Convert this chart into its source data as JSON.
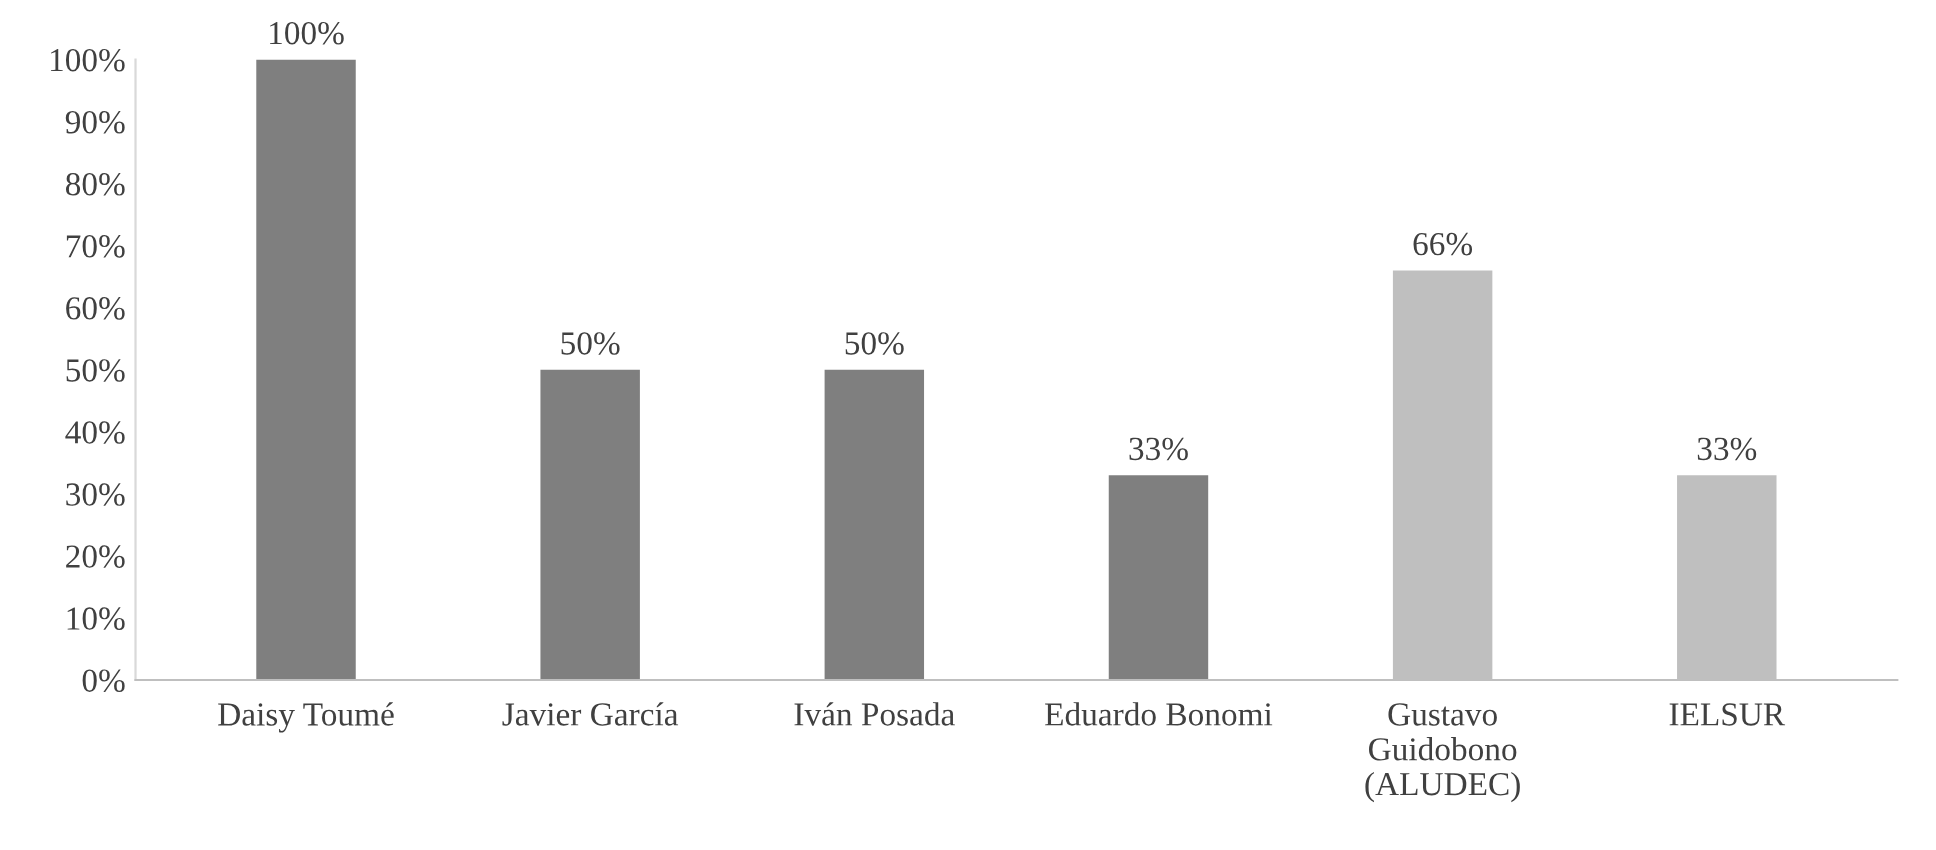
{
  "chart_data": {
    "type": "bar",
    "categories": [
      "Daisy Toumé",
      "Javier García",
      "Iván Posada",
      "Eduardo Bonomi",
      "Gustavo\nGuidobono\n(ALUDEC)",
      "IELSUR"
    ],
    "values": [
      100,
      50,
      50,
      33,
      66,
      33
    ],
    "colors": [
      "#7f7f7f",
      "#7f7f7f",
      "#7f7f7f",
      "#7f7f7f",
      "#bfbfbf",
      "#bfbfbf"
    ],
    "value_labels": [
      "100%",
      "50%",
      "50%",
      "33%",
      "66%",
      "33%"
    ],
    "ylim": [
      0,
      100
    ],
    "yticks": [
      {
        "value": 0,
        "label": "0%"
      },
      {
        "value": 10,
        "label": "10%"
      },
      {
        "value": 20,
        "label": "20%"
      },
      {
        "value": 30,
        "label": "30%"
      },
      {
        "value": 40,
        "label": "40%"
      },
      {
        "value": 50,
        "label": "50%"
      },
      {
        "value": 60,
        "label": "60%"
      },
      {
        "value": 70,
        "label": "70%"
      },
      {
        "value": 80,
        "label": "80%"
      },
      {
        "value": 90,
        "label": "90%"
      },
      {
        "value": 100,
        "label": "100%"
      }
    ],
    "grid": false,
    "legend": false
  }
}
